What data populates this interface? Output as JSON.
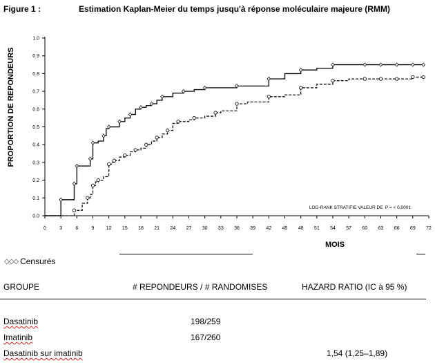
{
  "figure": {
    "label": "Figure 1 :",
    "caption": "Estimation Kaplan-Meier du temps jusqu'à réponse moléculaire majeure (RMM)"
  },
  "chart_data": {
    "type": "line",
    "ylabel": "PROPORTION DE REPONDEURS",
    "xlabel": "MOIS",
    "ylim": [
      0.0,
      1.0
    ],
    "xlim": [
      0,
      72
    ],
    "yticks": [
      "0.0",
      "0.1",
      "0.2",
      "0.3",
      "0.4",
      "0.5",
      "0.6",
      "0.7",
      "0.8",
      "0.9",
      "1.0"
    ],
    "xticks": [
      "0",
      "3",
      "6",
      "9",
      "12",
      "15",
      "18",
      "21",
      "24",
      "27",
      "30",
      "33",
      "36",
      "39",
      "42",
      "45",
      "48",
      "51",
      "54",
      "57",
      "60",
      "63",
      "66",
      "69",
      "72"
    ],
    "annotation_prefix": "LOG-RANK STRATIFIE VALEUR DE",
    "annotation_p": "P",
    "annotation_value": "= < 0,0001",
    "series": [
      {
        "style": "solid",
        "x": [
          0,
          3,
          3,
          5,
          5.5,
          6,
          6,
          8,
          8.5,
          9,
          9,
          10,
          11,
          11.5,
          12,
          13,
          14,
          15,
          16,
          17,
          18,
          19,
          20,
          21,
          22,
          24,
          26,
          28,
          30,
          33,
          36,
          40,
          42,
          45,
          48,
          51,
          54,
          57,
          60,
          63,
          66,
          69,
          71
        ],
        "y": [
          0.0,
          0.0,
          0.09,
          0.09,
          0.18,
          0.25,
          0.28,
          0.28,
          0.32,
          0.38,
          0.41,
          0.42,
          0.45,
          0.49,
          0.5,
          0.5,
          0.53,
          0.55,
          0.57,
          0.6,
          0.61,
          0.62,
          0.63,
          0.65,
          0.67,
          0.69,
          0.7,
          0.71,
          0.72,
          0.72,
          0.73,
          0.73,
          0.77,
          0.8,
          0.82,
          0.83,
          0.85,
          0.85,
          0.85,
          0.85,
          0.85,
          0.85,
          0.85
        ]
      },
      {
        "style": "dashed",
        "x": [
          0,
          5,
          5.5,
          7,
          8,
          8.5,
          9,
          9.5,
          10,
          11,
          12,
          12.5,
          13,
          14,
          15,
          16,
          17,
          18,
          19,
          20,
          21,
          22,
          23,
          24,
          25,
          27,
          28,
          30,
          32,
          33,
          36,
          38,
          42,
          45,
          48,
          51,
          54,
          57,
          60,
          63,
          66,
          69,
          71
        ],
        "y": [
          0.0,
          0.0,
          0.03,
          0.07,
          0.1,
          0.12,
          0.17,
          0.19,
          0.2,
          0.22,
          0.29,
          0.3,
          0.31,
          0.33,
          0.34,
          0.36,
          0.37,
          0.38,
          0.4,
          0.42,
          0.44,
          0.46,
          0.48,
          0.52,
          0.53,
          0.54,
          0.55,
          0.56,
          0.58,
          0.59,
          0.63,
          0.64,
          0.67,
          0.68,
          0.72,
          0.74,
          0.76,
          0.77,
          0.77,
          0.77,
          0.77,
          0.78,
          0.78
        ]
      }
    ]
  },
  "legend": {
    "symbols": "◇◇◇",
    "label": "Censurés"
  },
  "table": {
    "headers": [
      "GROUPE",
      "# REPONDEURS / # RANDOMISES",
      "HAZARD RATIO (IC à 95 %)"
    ],
    "rows": [
      {
        "group_a": "Dasatinib",
        "group_b": "",
        "responders": "198/259",
        "hr": ""
      },
      {
        "group_a": "Imatinib",
        "group_b": "",
        "responders": "167/260",
        "hr": ""
      },
      {
        "group_a": "Dasatinib",
        "group_b": " sur imatinib",
        "responders": "",
        "hr": "1,54 (1,25–1,89)"
      }
    ]
  }
}
